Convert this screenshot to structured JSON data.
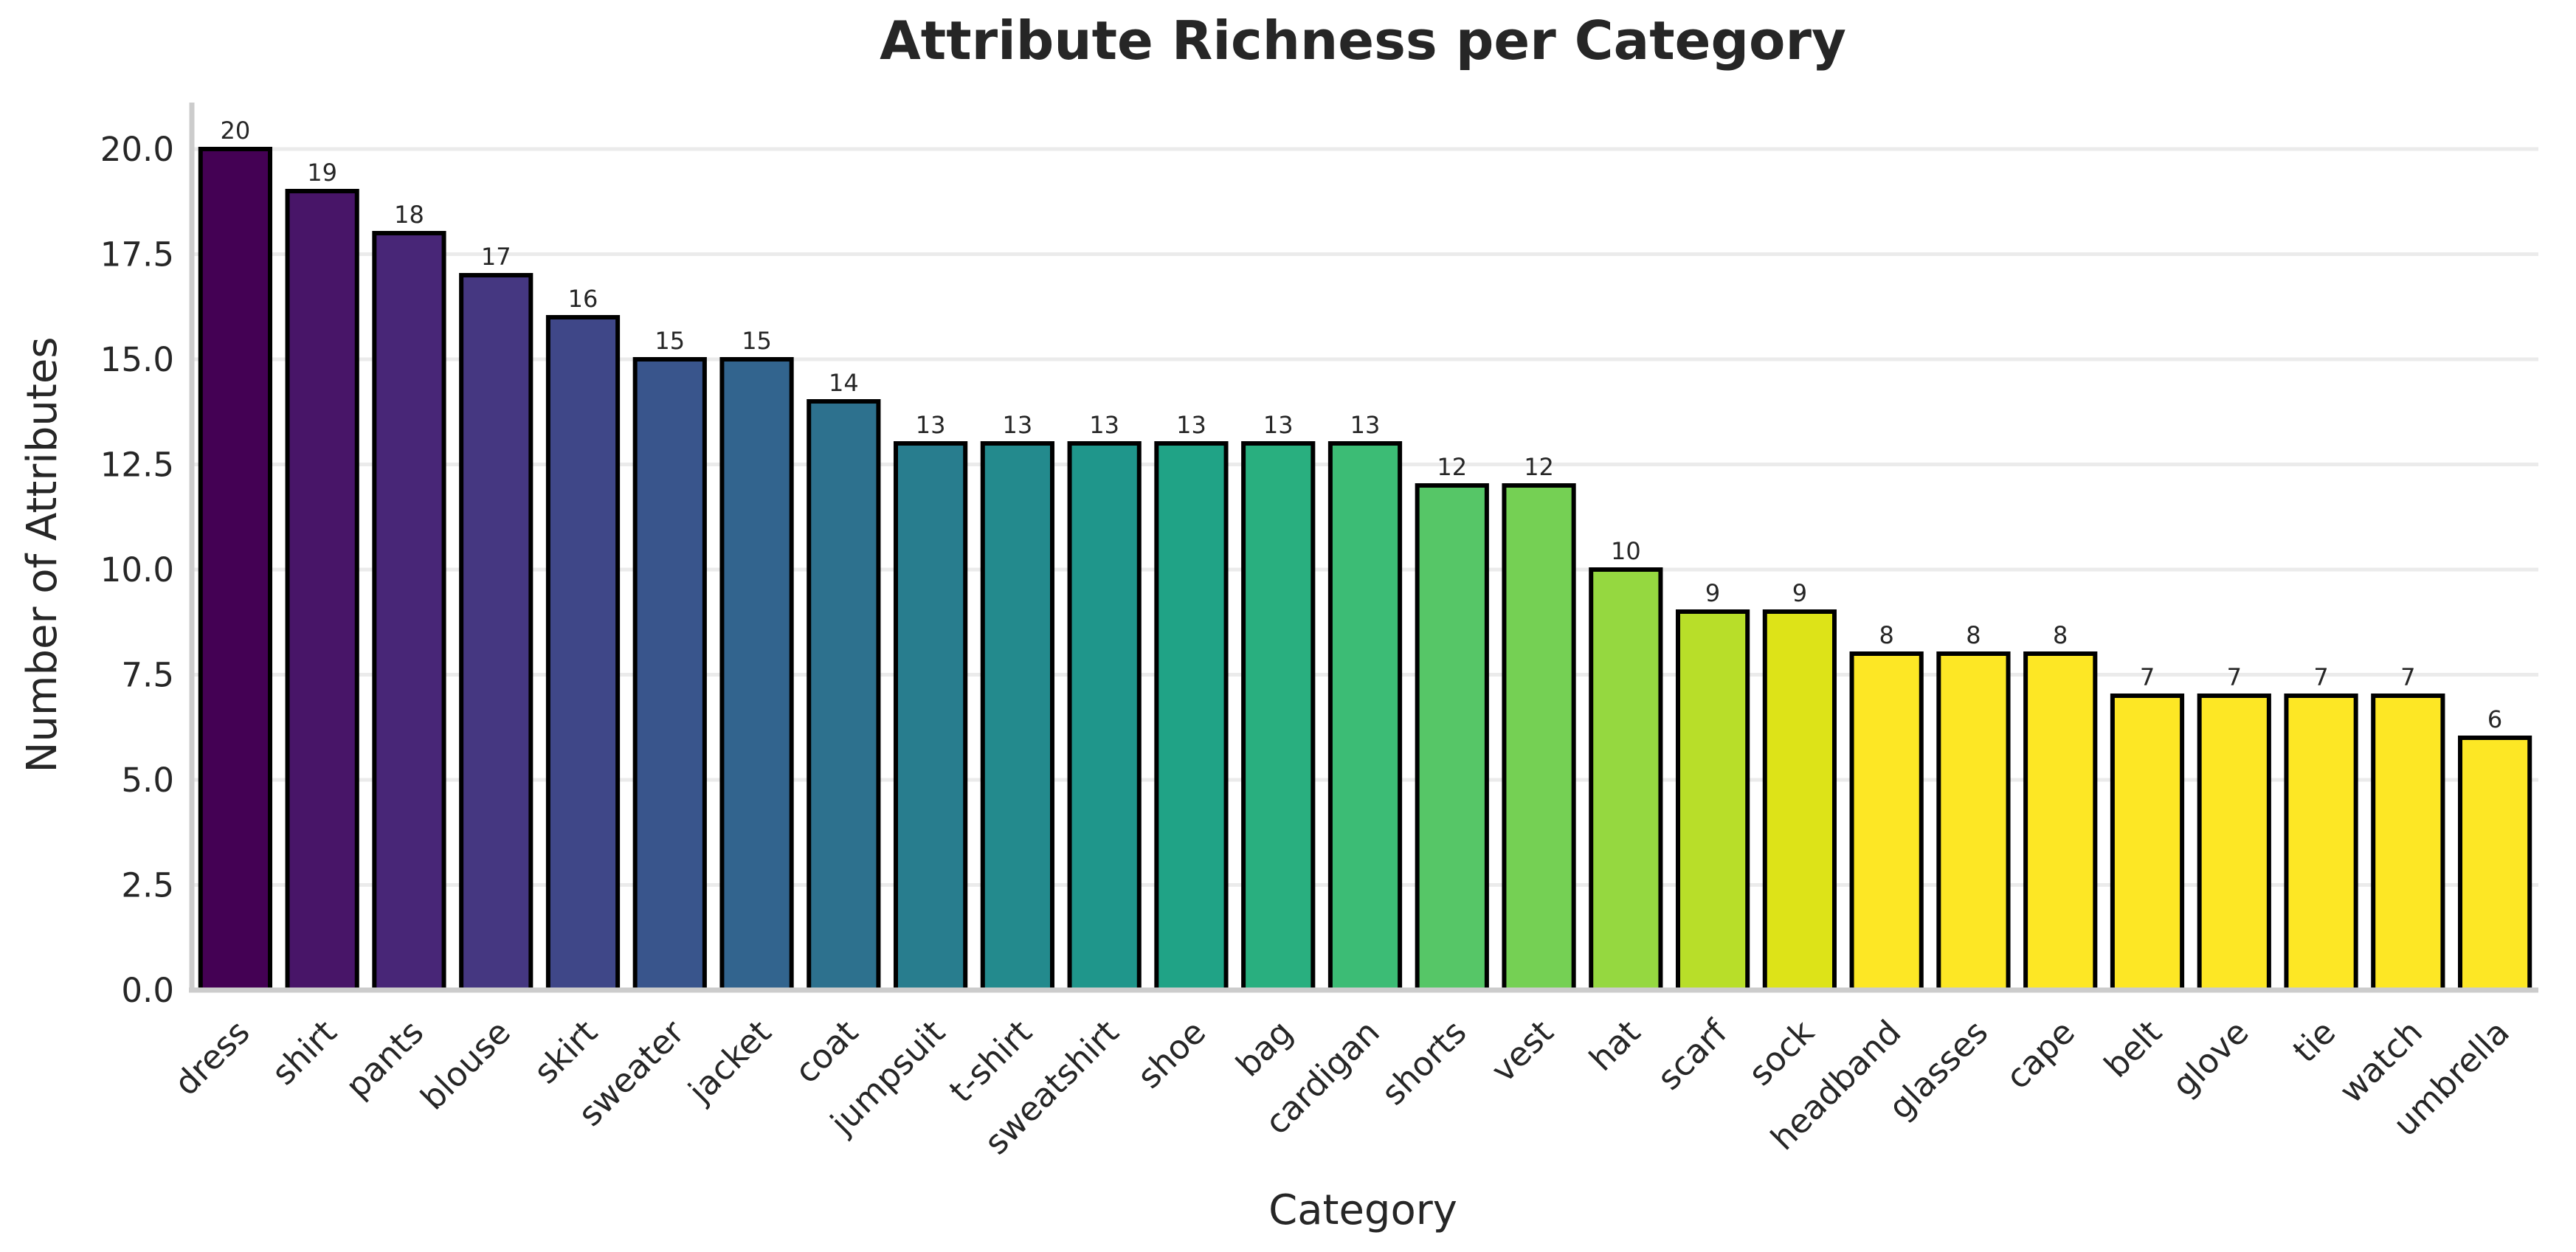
{
  "chart_data": {
    "type": "bar",
    "title": "Attribute Richness per Category",
    "xlabel": "Category",
    "ylabel": "Number of Attributes",
    "categories": [
      "dress",
      "shirt",
      "pants",
      "blouse",
      "skirt",
      "sweater",
      "jacket",
      "coat",
      "jumpsuit",
      "t-shirt",
      "sweatshirt",
      "shoe",
      "bag",
      "cardigan",
      "shorts",
      "vest",
      "hat",
      "scarf",
      "sock",
      "headband",
      "glasses",
      "cape",
      "belt",
      "glove",
      "tie",
      "watch",
      "umbrella"
    ],
    "values": [
      20,
      19,
      18,
      17,
      16,
      15,
      15,
      14,
      13,
      13,
      13,
      13,
      13,
      13,
      12,
      12,
      10,
      9,
      9,
      8,
      8,
      8,
      7,
      7,
      7,
      7,
      6
    ],
    "data_labels": [
      "20",
      "19",
      "18",
      "17",
      "16",
      "15",
      "15",
      "14",
      "13",
      "13",
      "13",
      "13",
      "13",
      "13",
      "12",
      "12",
      "10",
      "9",
      "9",
      "8",
      "8",
      "8",
      "7",
      "7",
      "7",
      "7",
      "6"
    ],
    "ylim": [
      0,
      21
    ],
    "yticks": [
      0,
      2.5,
      5,
      7.5,
      10,
      12.5,
      15,
      17.5,
      20
    ],
    "ytick_labels": [
      "0.0",
      "2.5",
      "5.0",
      "7.5",
      "10.0",
      "12.5",
      "15.0",
      "17.5",
      "20.0"
    ],
    "grid": "horizontal",
    "colormap": "viridis",
    "colors": [
      "#440154",
      "#481568",
      "#482677",
      "#453781",
      "#3f4788",
      "#39558c",
      "#32648e",
      "#2d718e",
      "#287d8e",
      "#238a8d",
      "#1f968b",
      "#20a386",
      "#29af7f",
      "#3cbc75",
      "#56c667",
      "#75d054",
      "#95d840",
      "#b8de29",
      "#dde318",
      "#fde725",
      "#fde725",
      "#fde725",
      "#fde725",
      "#fde725",
      "#fde725",
      "#fde725",
      "#fde725"
    ],
    "bar_edge_color": "#000000",
    "grid_color": "#ebebeb",
    "axis_color": "#cccccc"
  }
}
